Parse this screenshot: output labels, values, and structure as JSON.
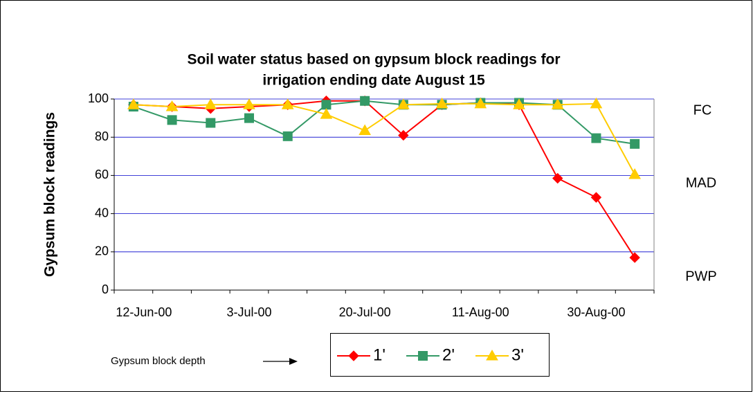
{
  "chart_data": {
    "type": "line",
    "title": [
      "Soil water status based on gypsum block readings for",
      "irrigation ending date August 15"
    ],
    "y_label": "Gypsum block readings",
    "categories": [
      "12-Jun-00",
      null,
      null,
      "3-Jul-00",
      null,
      null,
      "20-Jul-00",
      null,
      null,
      "11-Aug-00",
      null,
      null,
      "30-Aug-00",
      null
    ],
    "series": [
      {
        "name": "1'",
        "color": "#ff0000",
        "marker": "diamond",
        "values": [
          97,
          96,
          95,
          96,
          97,
          99,
          99,
          81,
          97,
          98,
          97,
          58.5,
          48.5,
          17
        ]
      },
      {
        "name": "2'",
        "color": "#339966",
        "marker": "square",
        "values": [
          96,
          89,
          87.5,
          90,
          80.5,
          97,
          99,
          97,
          97,
          98,
          98,
          97,
          79.5,
          76.5
        ]
      },
      {
        "name": "3'",
        "color": "#ffcc00",
        "marker": "triangle",
        "values": [
          97,
          96,
          97,
          97,
          97,
          92,
          83.5,
          97,
          97.5,
          97.5,
          97,
          97,
          97.5,
          60.5
        ]
      }
    ],
    "ylim": [
      0,
      100
    ],
    "yticks": [
      0,
      20,
      40,
      60,
      80,
      100
    ],
    "grid": true,
    "annotations": [
      "FC",
      "MAD",
      "PWP"
    ],
    "legend_note": "Gypsum block depth"
  }
}
